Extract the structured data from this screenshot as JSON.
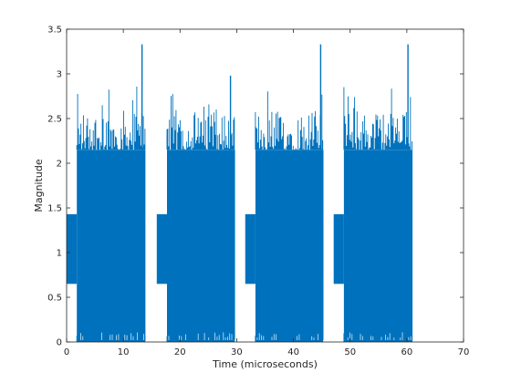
{
  "chart_data": {
    "type": "line",
    "title": "",
    "xlabel": "Time (microseconds)",
    "ylabel": "Magnitude",
    "xlim": [
      0,
      70
    ],
    "ylim": [
      0,
      3.5
    ],
    "xticks": [
      0,
      10,
      20,
      30,
      40,
      50,
      60,
      70
    ],
    "xtick_labels": [
      "0",
      "10",
      "20",
      "30",
      "40",
      "50",
      "60",
      "70"
    ],
    "yticks": [
      0,
      0.5,
      1,
      1.5,
      2,
      2.5,
      3,
      3.5
    ],
    "ytick_labels": [
      "0",
      "0.5",
      "1",
      "1.5",
      "2",
      "2.5",
      "3",
      "3.5"
    ],
    "grid": false,
    "box": true,
    "series_color": "#0072BD",
    "axis_color": "#262626",
    "description_data": {
      "segments": [
        {
          "preamble": {
            "x_start": 0.0,
            "x_end": 1.8,
            "low": 0.65,
            "high": 1.43
          },
          "burst": {
            "x_start": 1.8,
            "x_end": 13.9,
            "floor": 0.02,
            "dense_top": 2.15,
            "typical_peak": 2.6,
            "max_peak": 3.33,
            "max_peak_x": 13.3
          }
        },
        {
          "preamble": {
            "x_start": 15.9,
            "x_end": 17.7,
            "low": 0.65,
            "high": 1.43
          },
          "burst": {
            "x_start": 17.7,
            "x_end": 29.7,
            "floor": 0.02,
            "dense_top": 2.15,
            "typical_peak": 2.6,
            "max_peak": 2.98,
            "max_peak_x": 28.9
          }
        },
        {
          "preamble": {
            "x_start": 31.5,
            "x_end": 33.3,
            "low": 0.65,
            "high": 1.43
          },
          "burst": {
            "x_start": 33.3,
            "x_end": 45.3,
            "floor": 0.02,
            "dense_top": 2.15,
            "typical_peak": 2.6,
            "max_peak": 3.33,
            "max_peak_x": 44.8
          }
        },
        {
          "preamble": {
            "x_start": 47.1,
            "x_end": 48.9,
            "low": 0.65,
            "high": 1.43
          },
          "burst": {
            "x_start": 48.9,
            "x_end": 61.0,
            "floor": 0.02,
            "dense_top": 2.15,
            "typical_peak": 2.6,
            "max_peak": 3.33,
            "max_peak_x": 60.2
          }
        }
      ]
    }
  }
}
